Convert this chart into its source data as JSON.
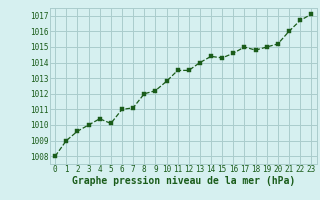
{
  "x": [
    0,
    1,
    2,
    3,
    4,
    5,
    6,
    7,
    8,
    9,
    10,
    11,
    12,
    13,
    14,
    15,
    16,
    17,
    18,
    19,
    20,
    21,
    22,
    23
  ],
  "y": [
    1008.0,
    1009.0,
    1009.6,
    1010.0,
    1010.4,
    1010.1,
    1011.0,
    1011.1,
    1012.0,
    1012.2,
    1012.8,
    1013.5,
    1013.5,
    1014.0,
    1014.4,
    1014.3,
    1014.6,
    1015.0,
    1014.8,
    1015.0,
    1015.2,
    1016.0,
    1016.7,
    1017.1
  ],
  "line_color": "#1a5c1a",
  "marker_color": "#1a5c1a",
  "bg_color": "#d6f0f0",
  "grid_color": "#aacccc",
  "xlabel": "Graphe pression niveau de la mer (hPa)",
  "xlabel_color": "#1a5c1a",
  "tick_color": "#1a5c1a",
  "ylim": [
    1007.5,
    1017.5
  ],
  "xlim": [
    -0.5,
    23.5
  ],
  "yticks": [
    1008,
    1009,
    1010,
    1011,
    1012,
    1013,
    1014,
    1015,
    1016,
    1017
  ],
  "xticks": [
    0,
    1,
    2,
    3,
    4,
    5,
    6,
    7,
    8,
    9,
    10,
    11,
    12,
    13,
    14,
    15,
    16,
    17,
    18,
    19,
    20,
    21,
    22,
    23
  ],
  "tick_fontsize": 5.5,
  "xlabel_fontsize": 7.0
}
